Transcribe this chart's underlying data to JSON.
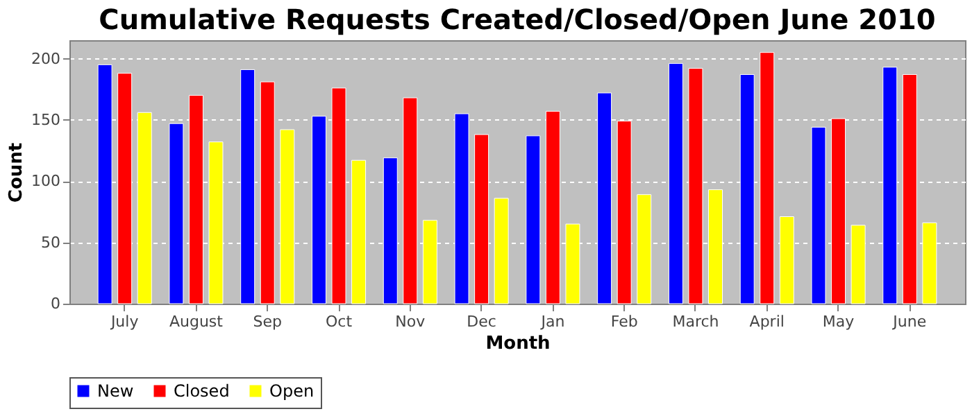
{
  "chart_data": {
    "type": "bar",
    "title": "Cumulative Requests Created/Closed/Open June 2010",
    "xlabel": "Month",
    "ylabel": "Count",
    "categories": [
      "July",
      "August",
      "Sep",
      "Oct",
      "Nov",
      "Dec",
      "Jan",
      "Feb",
      "March",
      "April",
      "May",
      "June"
    ],
    "series": [
      {
        "name": "New",
        "color": "#0000ff",
        "values": [
          195,
          147,
          191,
          153,
          119,
          155,
          137,
          172,
          196,
          187,
          144,
          193
        ]
      },
      {
        "name": "Closed",
        "color": "#ff0000",
        "values": [
          188,
          170,
          181,
          176,
          168,
          138,
          157,
          149,
          192,
          205,
          151,
          187
        ]
      },
      {
        "name": "Open",
        "color": "#ffff00",
        "values": [
          156,
          132,
          142,
          117,
          68,
          86,
          65,
          89,
          93,
          71,
          64,
          66
        ]
      }
    ],
    "ylim": [
      0,
      215
    ],
    "yticks": [
      0,
      50,
      100,
      150,
      200
    ],
    "grid": "y",
    "legend": "bottom"
  }
}
